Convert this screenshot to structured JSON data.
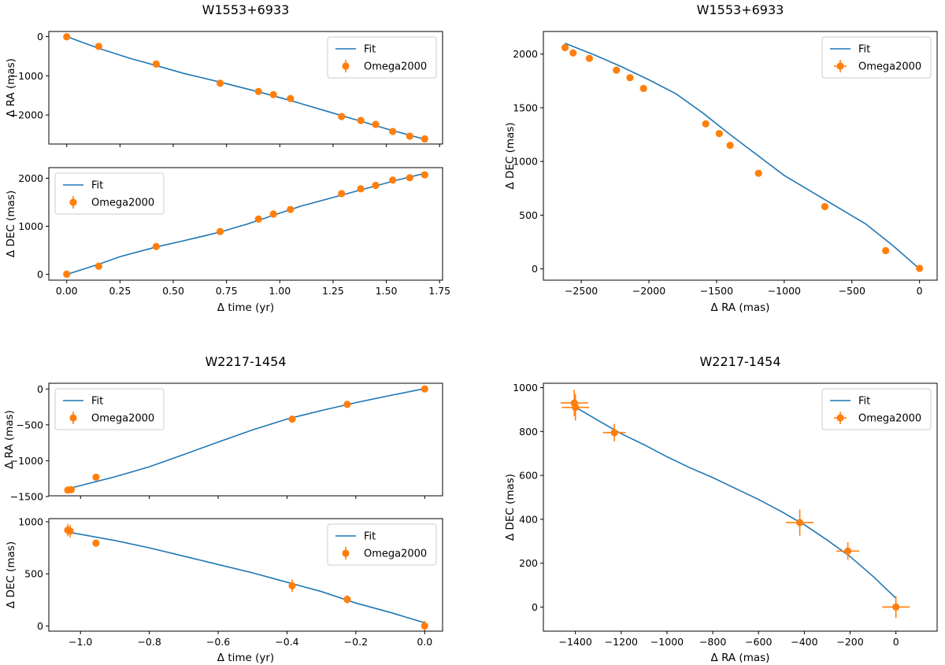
{
  "colors": {
    "fit": "#1f77b4",
    "data": "#ff7f0e"
  },
  "legend": {
    "fit_label": "Fit",
    "data_label": "Omega2000"
  },
  "chart_data": [
    {
      "id": "w1553-ra-time",
      "type": "line",
      "title": "W1553+6933",
      "xlabel": "",
      "ylabel": "Δ RA (mas)",
      "xlim": [
        -0.084,
        1.764
      ],
      "ylim": [
        -2740,
        130
      ],
      "xticks": [
        0,
        0.25,
        0.5,
        0.75,
        1.0,
        1.25,
        1.5,
        1.75
      ],
      "xtick_labels": [],
      "yticks": [
        0,
        -1000,
        -2000
      ],
      "ytick_labels": [
        "0",
        "−1000",
        "−2000"
      ],
      "legend_position": "top-right",
      "fit_x": [
        0,
        0.15,
        0.3,
        0.42,
        0.55,
        0.72,
        0.9,
        1.05,
        1.2,
        1.35,
        1.5,
        1.68
      ],
      "fit_y": [
        0,
        -300,
        -560,
        -740,
        -940,
        -1160,
        -1410,
        -1630,
        -1870,
        -2110,
        -2350,
        -2620
      ],
      "points": [
        {
          "x": 0.0,
          "y": -5
        },
        {
          "x": 0.15,
          "y": -250
        },
        {
          "x": 0.42,
          "y": -700
        },
        {
          "x": 0.72,
          "y": -1190
        },
        {
          "x": 0.9,
          "y": -1400
        },
        {
          "x": 0.97,
          "y": -1480
        },
        {
          "x": 1.05,
          "y": -1580
        },
        {
          "x": 1.29,
          "y": -2040
        },
        {
          "x": 1.38,
          "y": -2140
        },
        {
          "x": 1.45,
          "y": -2240
        },
        {
          "x": 1.53,
          "y": -2420
        },
        {
          "x": 1.61,
          "y": -2540
        },
        {
          "x": 1.68,
          "y": -2610
        }
      ]
    },
    {
      "id": "w1553-dec-time",
      "type": "line",
      "title": "",
      "xlabel": "Δ time (yr)",
      "ylabel": "Δ DEC (mas)",
      "xlim": [
        -0.084,
        1.764
      ],
      "ylim": [
        -120,
        2220
      ],
      "xticks": [
        0,
        0.25,
        0.5,
        0.75,
        1.0,
        1.25,
        1.5,
        1.75
      ],
      "xtick_labels": [
        "0.00",
        "0.25",
        "0.50",
        "0.75",
        "1.00",
        "1.25",
        "1.50",
        "1.75"
      ],
      "yticks": [
        0,
        1000,
        2000
      ],
      "ytick_labels": [
        "0",
        "1000",
        "2000"
      ],
      "legend_position": "top-left",
      "fit_x": [
        0,
        0.15,
        0.25,
        0.42,
        0.55,
        0.72,
        0.85,
        0.97,
        1.1,
        1.25,
        1.4,
        1.55,
        1.68
      ],
      "fit_y": [
        0,
        210,
        370,
        570,
        700,
        880,
        1050,
        1230,
        1420,
        1600,
        1780,
        1960,
        2100
      ],
      "points": [
        {
          "x": 0.0,
          "y": 5
        },
        {
          "x": 0.15,
          "y": 170
        },
        {
          "x": 0.42,
          "y": 580
        },
        {
          "x": 0.72,
          "y": 890
        },
        {
          "x": 0.9,
          "y": 1150
        },
        {
          "x": 0.97,
          "y": 1255
        },
        {
          "x": 1.05,
          "y": 1350
        },
        {
          "x": 1.29,
          "y": 1680
        },
        {
          "x": 1.38,
          "y": 1780
        },
        {
          "x": 1.45,
          "y": 1850
        },
        {
          "x": 1.53,
          "y": 1960
        },
        {
          "x": 1.61,
          "y": 2010
        },
        {
          "x": 1.68,
          "y": 2070
        }
      ]
    },
    {
      "id": "w1553-dec-ra",
      "type": "line",
      "title": "W1553+6933",
      "xlabel": "Δ RA (mas)",
      "ylabel": "Δ DEC (mas)",
      "xlim": [
        -2780,
        130
      ],
      "ylim": [
        -105,
        2210
      ],
      "xticks": [
        -2500,
        -2000,
        -1500,
        -1000,
        -500,
        0
      ],
      "xtick_labels": [
        "−2500",
        "−2000",
        "−1500",
        "−1000",
        "−500",
        "0"
      ],
      "yticks": [
        0,
        500,
        1000,
        1500,
        2000
      ],
      "ytick_labels": [
        "0",
        "500",
        "1000",
        "1500",
        "2000"
      ],
      "legend_position": "top-right",
      "fit_x": [
        0,
        -200,
        -400,
        -600,
        -800,
        -1000,
        -1200,
        -1400,
        -1600,
        -1800,
        -2000,
        -2200,
        -2400,
        -2620
      ],
      "fit_y": [
        0,
        220,
        420,
        570,
        720,
        870,
        1060,
        1250,
        1450,
        1630,
        1760,
        1880,
        1990,
        2100
      ],
      "points": [
        {
          "x": -2620,
          "y": 2060
        },
        {
          "x": -2560,
          "y": 2010
        },
        {
          "x": -2440,
          "y": 1960
        },
        {
          "x": -2240,
          "y": 1850
        },
        {
          "x": -2140,
          "y": 1780
        },
        {
          "x": -2040,
          "y": 1680
        },
        {
          "x": -1580,
          "y": 1350
        },
        {
          "x": -1480,
          "y": 1260
        },
        {
          "x": -1400,
          "y": 1150
        },
        {
          "x": -1190,
          "y": 890
        },
        {
          "x": -700,
          "y": 580
        },
        {
          "x": -250,
          "y": 170
        },
        {
          "x": 0,
          "y": 5
        }
      ]
    },
    {
      "id": "w2217-ra-time",
      "type": "line",
      "title": "W2217-1454",
      "xlabel": "",
      "ylabel": "Δ RA (mas)",
      "xlim": [
        -1.092,
        0.052
      ],
      "ylim": [
        -1490,
        80
      ],
      "xticks": [
        -1.0,
        -0.8,
        -0.6,
        -0.4,
        -0.2,
        0.0
      ],
      "xtick_labels": [],
      "yticks": [
        0,
        -500,
        -1000,
        -1500
      ],
      "ytick_labels": [
        "0",
        "−500",
        "−1000",
        "−1500"
      ],
      "legend_position": "top-left",
      "fit_x": [
        -1.035,
        -0.9,
        -0.8,
        -0.7,
        -0.6,
        -0.5,
        -0.4,
        -0.3,
        -0.2,
        -0.1,
        0.0
      ],
      "fit_y": [
        -1390,
        -1225,
        -1085,
        -915,
        -740,
        -570,
        -420,
        -300,
        -190,
        -90,
        5
      ],
      "points": [
        {
          "x": -1.037,
          "y": -1410
        },
        {
          "x": -1.027,
          "y": -1405
        },
        {
          "x": -0.955,
          "y": -1230
        },
        {
          "x": -0.385,
          "y": -420
        },
        {
          "x": -0.225,
          "y": -215
        },
        {
          "x": 0.0,
          "y": 0
        }
      ]
    },
    {
      "id": "w2217-dec-time",
      "type": "line",
      "title": "",
      "xlabel": "Δ time (yr)",
      "ylabel": "Δ DEC (mas)",
      "xlim": [
        -1.092,
        0.052
      ],
      "ylim": [
        -50,
        1030
      ],
      "xticks": [
        -1.0,
        -0.8,
        -0.6,
        -0.4,
        -0.2,
        0.0
      ],
      "xtick_labels": [
        "−1.0",
        "−0.8",
        "−0.6",
        "−0.4",
        "−0.2",
        "0.0"
      ],
      "yticks": [
        0,
        500,
        1000
      ],
      "ytick_labels": [
        "0",
        "500",
        "1000"
      ],
      "legend_position": "top-right",
      "fit_x": [
        -1.035,
        -0.9,
        -0.8,
        -0.7,
        -0.6,
        -0.5,
        -0.4,
        -0.3,
        -0.2,
        -0.1,
        0.0
      ],
      "fit_y": [
        900,
        820,
        750,
        670,
        590,
        510,
        420,
        330,
        220,
        130,
        30
      ],
      "points": [
        {
          "x": -1.037,
          "y": 920,
          "err": 60
        },
        {
          "x": -1.03,
          "y": 910,
          "err": 60
        },
        {
          "x": -0.955,
          "y": 795,
          "err": 35
        },
        {
          "x": -0.385,
          "y": 385,
          "err": 60
        },
        {
          "x": -0.225,
          "y": 255,
          "err": 40
        },
        {
          "x": 0.0,
          "y": 0,
          "err": 50
        }
      ]
    },
    {
      "id": "w2217-dec-ra",
      "type": "line",
      "title": "W2217-1454",
      "xlabel": "Δ RA (mas)",
      "ylabel": "Δ DEC (mas)",
      "xlim": [
        -1540,
        180
      ],
      "ylim": [
        -110,
        1020
      ],
      "xticks": [
        -1400,
        -1200,
        -1000,
        -800,
        -600,
        -400,
        -200,
        0
      ],
      "xtick_labels": [
        "−1400",
        "−1200",
        "−1000",
        "−800",
        "−600",
        "−400",
        "−200",
        "0"
      ],
      "yticks": [
        0,
        200,
        400,
        600,
        800,
        1000
      ],
      "ytick_labels": [
        "0",
        "200",
        "400",
        "600",
        "800",
        "1000"
      ],
      "legend_position": "top-right",
      "fit_x": [
        -1390,
        -1300,
        -1200,
        -1100,
        -1000,
        -900,
        -800,
        -700,
        -600,
        -500,
        -400,
        -300,
        -200,
        -100,
        0
      ],
      "fit_y": [
        905,
        850,
        790,
        740,
        685,
        635,
        590,
        540,
        490,
        435,
        375,
        305,
        230,
        140,
        40
      ],
      "points": [
        {
          "x": -1405,
          "y": 930,
          "xerr": 60,
          "yerr": 60
        },
        {
          "x": -1400,
          "y": 910,
          "xerr": 60,
          "yerr": 60
        },
        {
          "x": -1230,
          "y": 795,
          "xerr": 50,
          "yerr": 40
        },
        {
          "x": -420,
          "y": 385,
          "xerr": 60,
          "yerr": 60
        },
        {
          "x": -210,
          "y": 255,
          "xerr": 50,
          "yerr": 40
        },
        {
          "x": 0,
          "y": 0,
          "xerr": 60,
          "yerr": 50
        }
      ]
    }
  ]
}
